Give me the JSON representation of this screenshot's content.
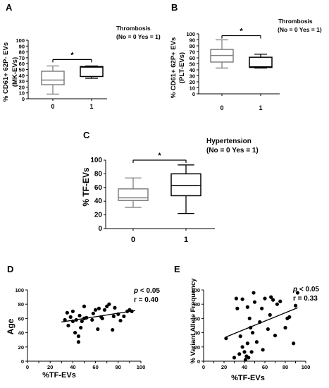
{
  "panels": {
    "A": {
      "label": "A",
      "note_line1": "Thrombosis",
      "note_line2": "(No = 0 Yes = 1)",
      "star": "*"
    },
    "B": {
      "label": "B",
      "note_line1": "Thrombosis",
      "note_line2": "(No = 0 Yes = 1)",
      "star": "*"
    },
    "C": {
      "label": "C",
      "note_line1": "Hypertension",
      "note_line2": "(No = 0 Yes = 1)",
      "star": "*"
    },
    "D": {
      "label": "D",
      "stat_p": "p < 0.05",
      "stat_r": "r = 0.40"
    },
    "E": {
      "label": "E",
      "stat_p": "p < 0.05",
      "stat_r": "r = 0.33"
    }
  },
  "colors": {
    "box_group0": "#808080",
    "box_group1": "#000000",
    "points": "#000000"
  },
  "chart_data": [
    {
      "panel": "A",
      "type": "box",
      "ylabel_line1": "% CD61+ 62P- EVs",
      "ylabel_line2": "(MK-EVs)",
      "categories": [
        "0",
        "1"
      ],
      "ylim": [
        0,
        100
      ],
      "yticks": [
        0,
        10,
        20,
        30,
        40,
        50,
        60,
        70,
        80,
        90,
        100
      ],
      "boxes": [
        {
          "category": "0",
          "min": 8,
          "q1": 24,
          "median": 32,
          "q3": 47,
          "max": 56
        },
        {
          "category": "1",
          "min": 35,
          "q1": 38,
          "median": 54,
          "q3": 55,
          "max": 56
        }
      ],
      "significance": {
        "from": "0",
        "to": "1",
        "y": 67,
        "label": "*"
      }
    },
    {
      "panel": "B",
      "type": "box",
      "ylabel_line1": "% CD61+ 62P+ EVs",
      "ylabel_line2": "(PLT-EVs)",
      "categories": [
        "0",
        "1"
      ],
      "ylim": [
        0,
        100
      ],
      "yticks": [
        0,
        10,
        20,
        30,
        40,
        50,
        60,
        70,
        80,
        90,
        100
      ],
      "boxes": [
        {
          "category": "0",
          "min": 43,
          "q1": 53,
          "median": 64,
          "q3": 74,
          "max": 90
        },
        {
          "category": "1",
          "min": 43,
          "q1": 44,
          "median": 45,
          "q3": 61,
          "max": 66
        }
      ],
      "significance": {
        "from": "0",
        "to": "1",
        "y": 97,
        "label": "*"
      }
    },
    {
      "panel": "C",
      "type": "box",
      "ylabel": "% TF-EVs",
      "categories": [
        "0",
        "1"
      ],
      "ylim": [
        0,
        100
      ],
      "yticks": [
        0,
        20,
        40,
        60,
        80,
        100
      ],
      "boxes": [
        {
          "category": "0",
          "min": 31,
          "q1": 41,
          "median": 45,
          "q3": 58,
          "max": 74
        },
        {
          "category": "1",
          "min": 22,
          "q1": 48,
          "median": 63,
          "q3": 80,
          "max": 93
        }
      ],
      "significance": {
        "from": "0",
        "to": "1",
        "y": 100,
        "label": "*"
      }
    },
    {
      "panel": "D",
      "type": "scatter",
      "xlabel": "%TF-EVs",
      "ylabel": "Age",
      "xlim": [
        0,
        100
      ],
      "ylim": [
        0,
        100
      ],
      "xticks": [
        0,
        10,
        20,
        30,
        40,
        50,
        60,
        70,
        80,
        90,
        100
      ],
      "yticks": [
        0,
        20,
        40,
        60,
        80,
        100
      ],
      "points": [
        {
          "x": 33,
          "y": 58
        },
        {
          "x": 35,
          "y": 68
        },
        {
          "x": 36,
          "y": 50
        },
        {
          "x": 38,
          "y": 62
        },
        {
          "x": 40,
          "y": 56
        },
        {
          "x": 40,
          "y": 70
        },
        {
          "x": 42,
          "y": 40
        },
        {
          "x": 43,
          "y": 58
        },
        {
          "x": 45,
          "y": 35
        },
        {
          "x": 45,
          "y": 27
        },
        {
          "x": 46,
          "y": 64
        },
        {
          "x": 47,
          "y": 47
        },
        {
          "x": 48,
          "y": 56
        },
        {
          "x": 50,
          "y": 60
        },
        {
          "x": 50,
          "y": 77
        },
        {
          "x": 52,
          "y": 61
        },
        {
          "x": 58,
          "y": 67
        },
        {
          "x": 60,
          "y": 72
        },
        {
          "x": 62,
          "y": 45
        },
        {
          "x": 63,
          "y": 74
        },
        {
          "x": 65,
          "y": 62
        },
        {
          "x": 66,
          "y": 60
        },
        {
          "x": 68,
          "y": 72
        },
        {
          "x": 70,
          "y": 77
        },
        {
          "x": 72,
          "y": 80
        },
        {
          "x": 75,
          "y": 44
        },
        {
          "x": 76,
          "y": 63
        },
        {
          "x": 77,
          "y": 75
        },
        {
          "x": 80,
          "y": 66
        },
        {
          "x": 82,
          "y": 57
        },
        {
          "x": 85,
          "y": 63
        },
        {
          "x": 88,
          "y": 70
        },
        {
          "x": 90,
          "y": 72
        },
        {
          "x": 92,
          "y": 70
        },
        {
          "x": 57,
          "y": 58
        }
      ],
      "trendline": {
        "x": [
          30,
          95
        ],
        "y": [
          55,
          71
        ]
      }
    },
    {
      "panel": "E",
      "type": "scatter",
      "xlabel": "%TF-EVs",
      "ylabel": "% Variant Allele Frequency",
      "xlim": [
        0,
        100
      ],
      "ylim": [
        0,
        100
      ],
      "xticks": [
        0,
        10,
        20,
        30,
        40,
        50,
        60,
        70,
        80,
        90,
        100
      ],
      "yticks": [
        0,
        20,
        40,
        60,
        80,
        100
      ],
      "points": [
        {
          "x": 22,
          "y": 32
        },
        {
          "x": 30,
          "y": 5
        },
        {
          "x": 32,
          "y": 88
        },
        {
          "x": 33,
          "y": 74
        },
        {
          "x": 35,
          "y": 10
        },
        {
          "x": 36,
          "y": 35
        },
        {
          "x": 38,
          "y": 20
        },
        {
          "x": 38,
          "y": 87
        },
        {
          "x": 40,
          "y": 13
        },
        {
          "x": 41,
          "y": 2
        },
        {
          "x": 42,
          "y": 7
        },
        {
          "x": 43,
          "y": 25
        },
        {
          "x": 43,
          "y": 76
        },
        {
          "x": 44,
          "y": 5
        },
        {
          "x": 45,
          "y": 60
        },
        {
          "x": 46,
          "y": 47
        },
        {
          "x": 47,
          "y": 13
        },
        {
          "x": 48,
          "y": 40
        },
        {
          "x": 49,
          "y": 96
        },
        {
          "x": 50,
          "y": 83
        },
        {
          "x": 52,
          "y": 27
        },
        {
          "x": 55,
          "y": 55
        },
        {
          "x": 57,
          "y": 74
        },
        {
          "x": 58,
          "y": 16
        },
        {
          "x": 60,
          "y": 88
        },
        {
          "x": 63,
          "y": 45
        },
        {
          "x": 65,
          "y": 65
        },
        {
          "x": 66,
          "y": 90
        },
        {
          "x": 68,
          "y": 86
        },
        {
          "x": 70,
          "y": 36
        },
        {
          "x": 72,
          "y": 80
        },
        {
          "x": 75,
          "y": 84
        },
        {
          "x": 80,
          "y": 47
        },
        {
          "x": 82,
          "y": 60
        },
        {
          "x": 84,
          "y": 62
        },
        {
          "x": 88,
          "y": 25
        },
        {
          "x": 90,
          "y": 78
        },
        {
          "x": 92,
          "y": 96
        }
      ],
      "trendline": {
        "x": [
          22,
          92
        ],
        "y": [
          34,
          75
        ]
      }
    }
  ]
}
